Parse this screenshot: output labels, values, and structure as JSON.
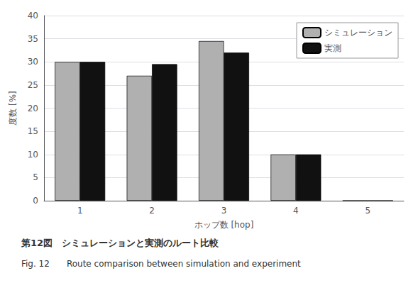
{
  "chart_data": {
    "type": "bar",
    "categories": [
      "1",
      "2",
      "3",
      "4",
      "5"
    ],
    "series": [
      {
        "name": "シミュレーション",
        "color": "#b0b0b0",
        "values": [
          30,
          27,
          34.5,
          10,
          0
        ]
      },
      {
        "name": "実測",
        "color": "#111111",
        "values": [
          30,
          29.5,
          32,
          10,
          0
        ]
      }
    ],
    "xlabel": "ホップ数 [hop]",
    "ylabel": "度数 [%]",
    "ylim": [
      0,
      40
    ],
    "yticks": [
      0,
      5,
      10,
      15,
      20,
      25,
      30,
      35,
      40
    ],
    "grid": true,
    "legend": "upper right",
    "annotations": [
      "第12図　シミュレーションと実測のルート比較",
      "Fig. 12　　Route comparison between simulation and experiment"
    ]
  }
}
